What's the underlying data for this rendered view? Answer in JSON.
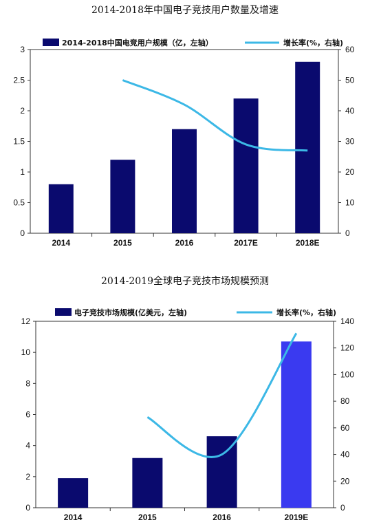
{
  "chart_data": [
    {
      "type": "bar",
      "title": "2014-2018年中国电子竞技用户数量及增速",
      "categories": [
        "2014",
        "2015",
        "2016",
        "2017E",
        "2018E"
      ],
      "series": [
        {
          "name": "2014-2018中国电竞用户规模（亿，左轴）",
          "kind": "bar",
          "axis": "left",
          "values": [
            0.8,
            1.2,
            1.7,
            2.2,
            2.8
          ],
          "color": "#0a0a6e"
        },
        {
          "name": "增长率(%，右轴)",
          "kind": "line",
          "axis": "right",
          "values": [
            null,
            50,
            42,
            29,
            27
          ],
          "color": "#3cb8e6"
        }
      ],
      "ylim_left": [
        0,
        3
      ],
      "yticks_left": [
        "0",
        "0.5",
        "1",
        "1.5",
        "2",
        "2.5",
        "3"
      ],
      "ylim_right": [
        0,
        60
      ],
      "yticks_right": [
        "0",
        "10",
        "20",
        "30",
        "40",
        "50",
        "60"
      ],
      "legend": "top"
    },
    {
      "type": "bar",
      "title": "2014-2019全球电子竞技市场规模预测",
      "categories": [
        "2014",
        "2015",
        "2016",
        "2019E"
      ],
      "series": [
        {
          "name": "电子竞技市场规模(亿美元，左轴)",
          "kind": "bar",
          "axis": "left",
          "values": [
            1.9,
            3.2,
            4.6,
            10.7
          ],
          "colors": [
            "#0a0a6e",
            "#0a0a6e",
            "#0a0a6e",
            "#3a3af0"
          ]
        },
        {
          "name": "增长率(%，右轴)",
          "kind": "line",
          "axis": "right",
          "values": [
            null,
            68,
            40,
            131
          ],
          "color": "#3cb8e6"
        }
      ],
      "ylim_left": [
        0,
        12
      ],
      "yticks_left": [
        "0",
        "2",
        "4",
        "6",
        "8",
        "10",
        "12"
      ],
      "ylim_right": [
        0,
        140
      ],
      "yticks_right": [
        "0",
        "20",
        "40",
        "60",
        "80",
        "100",
        "120",
        "140"
      ],
      "legend": "top"
    }
  ]
}
